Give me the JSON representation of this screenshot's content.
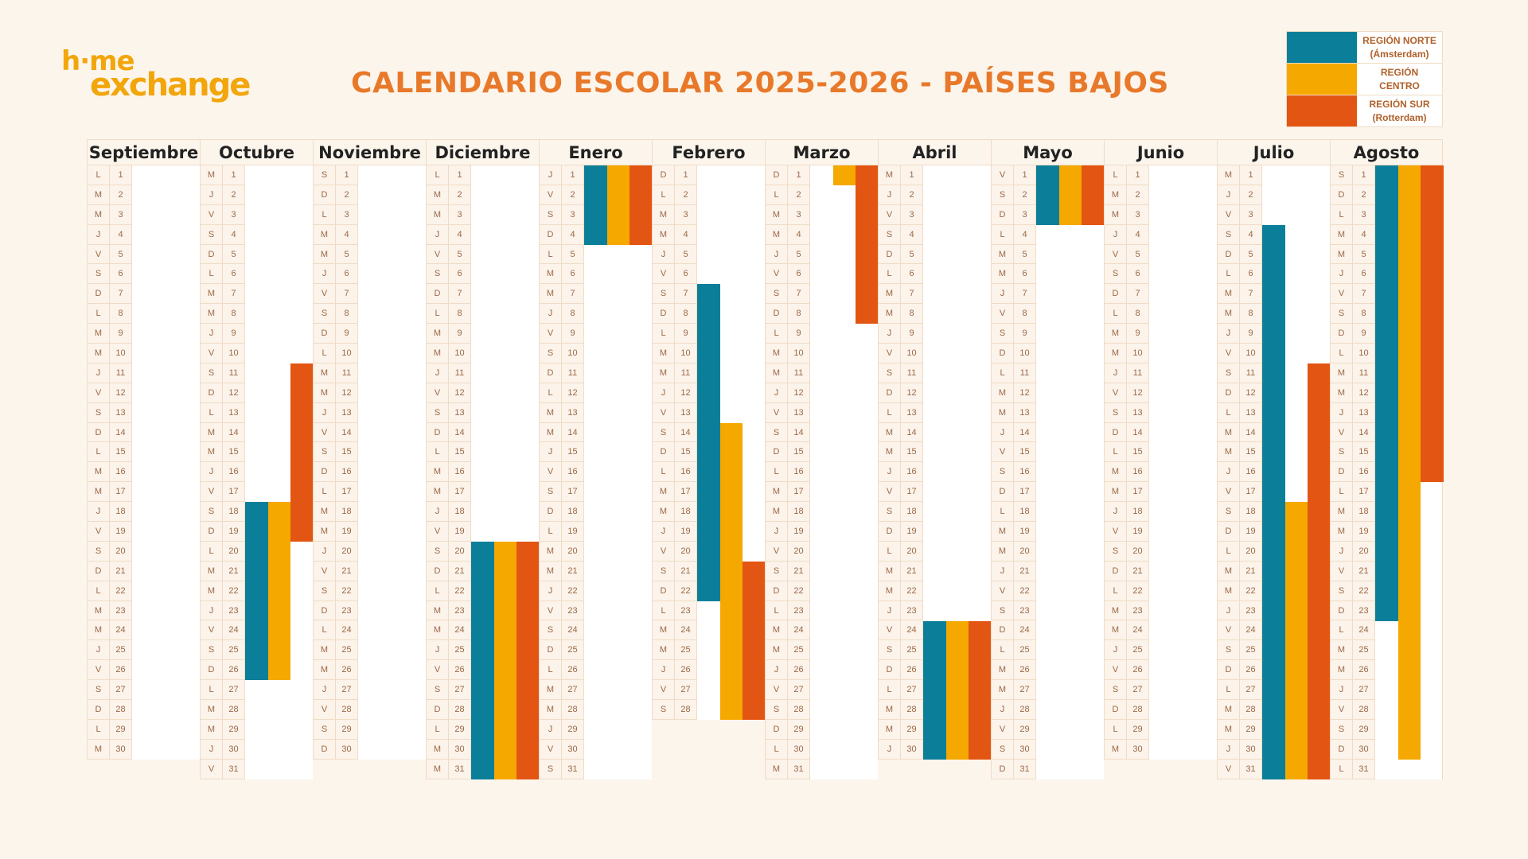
{
  "logo": {
    "line1": "h·me",
    "line2": "exchange"
  },
  "title": "CALENDARIO ESCOLAR 2025-2026 - PAÍSES BAJOS",
  "colors": {
    "norte": "#0b7f99",
    "centro": "#f5a800",
    "sur": "#e35512",
    "accent": "#e8792a"
  },
  "legend": [
    {
      "key": "norte",
      "line1": "REGIÓN NORTE",
      "line2": "(Ámsterdam)"
    },
    {
      "key": "centro",
      "line1": "REGIÓN",
      "line2": "CENTRO"
    },
    {
      "key": "sur",
      "line1": "REGIÓN SUR",
      "line2": "(Rotterdam)"
    }
  ],
  "weekday_letters": [
    "L",
    "M",
    "M",
    "J",
    "V",
    "S",
    "D"
  ],
  "months": [
    {
      "name": "Septiembre",
      "first_weekday": 0,
      "days": 30,
      "holidays": {}
    },
    {
      "name": "Octubre",
      "first_weekday": 2,
      "days": 31,
      "holidays": {
        "norte": [
          18,
          26
        ],
        "centro": [
          18,
          26
        ],
        "sur": [
          11,
          19
        ]
      }
    },
    {
      "name": "Noviembre",
      "first_weekday": 5,
      "days": 30,
      "holidays": {}
    },
    {
      "name": "Diciembre",
      "first_weekday": 0,
      "days": 31,
      "holidays": {
        "norte": [
          20,
          31
        ],
        "centro": [
          20,
          31
        ],
        "sur": [
          20,
          31
        ]
      }
    },
    {
      "name": "Enero",
      "first_weekday": 3,
      "days": 31,
      "holidays": {
        "norte": [
          1,
          4
        ],
        "centro": [
          1,
          4
        ],
        "sur": [
          1,
          4
        ]
      }
    },
    {
      "name": "Febrero",
      "first_weekday": 6,
      "days": 28,
      "holidays": {
        "norte": [
          7,
          22
        ],
        "centro": [
          14,
          28
        ],
        "sur": [
          21,
          28
        ]
      }
    },
    {
      "name": "Marzo",
      "first_weekday": 6,
      "days": 31,
      "holidays": {
        "centro": [
          1,
          1
        ],
        "sur": [
          1,
          8
        ]
      }
    },
    {
      "name": "Abril",
      "first_weekday": 2,
      "days": 30,
      "holidays": {
        "norte": [
          24,
          30
        ],
        "centro": [
          24,
          30
        ],
        "sur": [
          24,
          30
        ]
      }
    },
    {
      "name": "Mayo",
      "first_weekday": 4,
      "days": 31,
      "holidays": {
        "norte": [
          1,
          3
        ],
        "centro": [
          1,
          3
        ],
        "sur": [
          1,
          3
        ]
      }
    },
    {
      "name": "Junio",
      "first_weekday": 0,
      "days": 30,
      "holidays": {}
    },
    {
      "name": "Julio",
      "first_weekday": 2,
      "days": 31,
      "holidays": {
        "norte": [
          4,
          31
        ],
        "centro": [
          18,
          31
        ],
        "sur": [
          11,
          31
        ]
      }
    },
    {
      "name": "Agosto",
      "first_weekday": 5,
      "days": 31,
      "holidays": {
        "norte": [
          1,
          23
        ],
        "centro": [
          1,
          30
        ],
        "sur": [
          1,
          16
        ]
      }
    }
  ]
}
